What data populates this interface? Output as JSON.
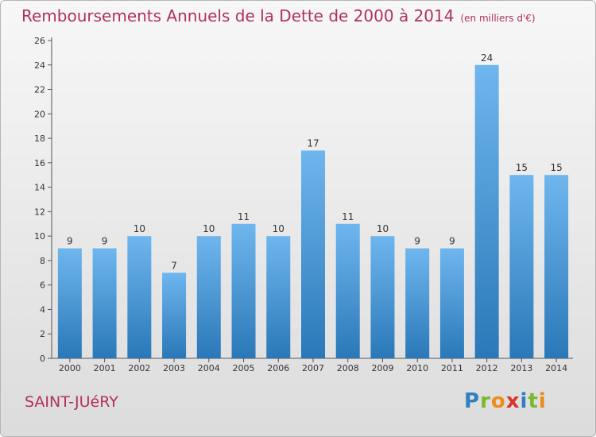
{
  "title": "Remboursements Annuels de la Dette de 2000 à 2014",
  "unit": "(en milliers d'€)",
  "city": "SAINT-JUéRY",
  "logo": {
    "text": "Proxiti",
    "letter_colors": [
      "#2f7fc1",
      "#7bb82b",
      "#f08a1c",
      "#d9362b",
      "#2f7fc1",
      "#7bb82b",
      "#f08a1c"
    ]
  },
  "colors": {
    "bar_light": "#6fb6ee",
    "bar_dark": "#2a78b8",
    "title": "#b03060"
  },
  "chart_data": {
    "type": "bar",
    "title": "Remboursements Annuels de la Dette de 2000 à 2014",
    "xlabel": "",
    "ylabel": "",
    "categories": [
      "2000",
      "2001",
      "2002",
      "2003",
      "2004",
      "2005",
      "2006",
      "2007",
      "2008",
      "2009",
      "2010",
      "2011",
      "2012",
      "2013",
      "2014"
    ],
    "values": [
      9,
      9,
      10,
      7,
      10,
      11,
      10,
      17,
      11,
      10,
      9,
      9,
      24,
      15,
      15
    ],
    "ylim": [
      0,
      26
    ],
    "yticks": [
      0,
      2,
      4,
      6,
      8,
      10,
      12,
      14,
      16,
      18,
      20,
      22,
      24,
      26
    ],
    "grid": false,
    "data_labels": true
  }
}
